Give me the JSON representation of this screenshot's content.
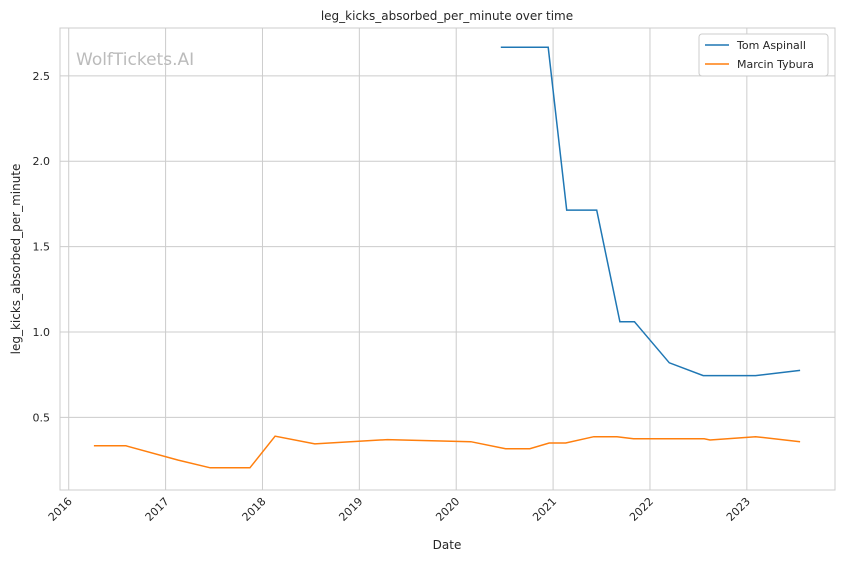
{
  "chart_data": {
    "type": "line",
    "title": "leg_kicks_absorbed_per_minute over time",
    "xlabel": "Date",
    "ylabel": "leg_kicks_absorbed_per_minute",
    "watermark": "WolfTickets.AI",
    "xlim": [
      2015.91,
      2023.91
    ],
    "ylim": [
      0.075,
      2.78
    ],
    "x_ticks": [
      2016,
      2017,
      2018,
      2019,
      2020,
      2021,
      2022,
      2023
    ],
    "x_tick_labels": [
      "2016",
      "2017",
      "2018",
      "2019",
      "2020",
      "2021",
      "2022",
      "2023"
    ],
    "y_ticks": [
      0.5,
      1.0,
      1.5,
      2.0,
      2.5
    ],
    "y_tick_labels": [
      "0.5",
      "1.0",
      "1.5",
      "2.0",
      "2.5"
    ],
    "grid": true,
    "legend_position": "top-right",
    "series": [
      {
        "name": "Tom Aspinall",
        "color": "#1f77b4",
        "x": [
          2020.46,
          2020.95,
          2021.14,
          2021.45,
          2021.69,
          2021.84,
          2022.2,
          2022.55,
          2023.09,
          2023.55
        ],
        "y": [
          2.667,
          2.667,
          1.714,
          1.714,
          1.06,
          1.06,
          0.82,
          0.745,
          0.745,
          0.775
        ]
      },
      {
        "name": "Marcin Tybura",
        "color": "#ff7f0e",
        "x": [
          2016.26,
          2016.59,
          2017.13,
          2017.46,
          2017.87,
          2018.13,
          2018.54,
          2019.29,
          2020.15,
          2020.51,
          2020.76,
          2020.96,
          2021.13,
          2021.42,
          2021.66,
          2021.83,
          2022.56,
          2022.62,
          2023.09,
          2023.55
        ],
        "y": [
          0.334,
          0.334,
          0.25,
          0.205,
          0.205,
          0.39,
          0.345,
          0.37,
          0.358,
          0.317,
          0.317,
          0.35,
          0.35,
          0.387,
          0.387,
          0.375,
          0.375,
          0.368,
          0.387,
          0.358
        ]
      }
    ]
  }
}
